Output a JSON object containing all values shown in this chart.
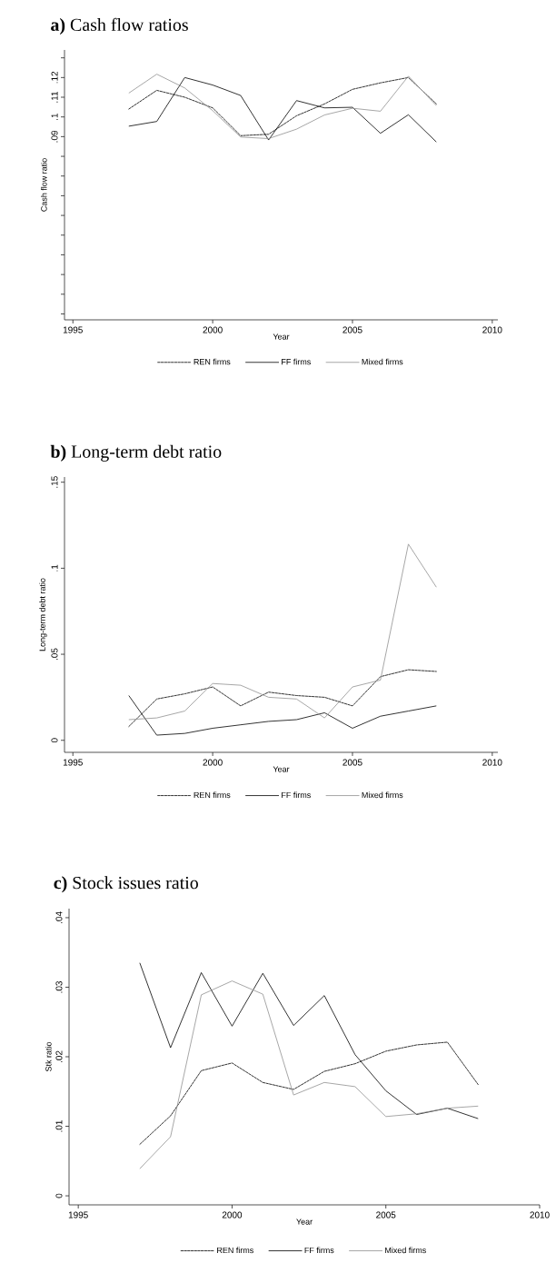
{
  "chart_data": [
    {
      "type": "line",
      "title": "**a)** Cash flow ratios",
      "xlabel": "Year",
      "ylabel": "Cash flow ratio",
      "legend": "bottom",
      "x": [
        1997,
        1998,
        1999,
        2000,
        2001,
        2002,
        2003,
        2004,
        2005,
        2006,
        2007,
        2008
      ],
      "series": [
        {
          "name": "REN firms",
          "color": "#000000",
          "line_style": "dashed",
          "values": [
            0.104,
            0.1135,
            0.11,
            0.1046,
            0.0905,
            0.0912,
            0.1006,
            0.1066,
            0.114,
            0.1173,
            0.12,
            0.1066
          ]
        },
        {
          "name": "FF firms",
          "color": "#000000",
          "line_style": "solid",
          "values": [
            0.0953,
            0.0977,
            0.12,
            0.1162,
            0.1109,
            0.0883,
            0.1083,
            0.1046,
            0.1049,
            0.0917,
            0.1011,
            0.0873
          ]
        },
        {
          "name": "Mixed firms",
          "color": "#909090",
          "line_style": "solid",
          "values": [
            0.1121,
            0.1217,
            0.1147,
            0.1032,
            0.0898,
            0.089,
            0.0938,
            0.101,
            0.1044,
            0.1029,
            0.1207,
            0.1058
          ]
        }
      ],
      "xlim": [
        1994.7,
        2010.2
      ],
      "ylim": [
        -0.003,
        0.134
      ],
      "xticks": [
        1995,
        2000,
        2005,
        2010
      ],
      "yticks": [
        {
          "value": 0,
          "label": null
        },
        {
          "value": 0.01,
          "label": null
        },
        {
          "value": 0.02,
          "label": null
        },
        {
          "value": 0.03,
          "label": null
        },
        {
          "value": 0.04,
          "label": null
        },
        {
          "value": 0.05,
          "label": null
        },
        {
          "value": 0.06,
          "label": null
        },
        {
          "value": 0.07,
          "label": null
        },
        {
          "value": 0.08,
          "label": null
        },
        {
          "value": 0.09,
          "label": ".09"
        },
        {
          "value": 0.1,
          "label": ".1"
        },
        {
          "value": 0.11,
          "label": ".11"
        },
        {
          "value": 0.12,
          "label": ".12"
        },
        {
          "value": 0.13,
          "label": null
        }
      ]
    },
    {
      "type": "line",
      "title": "**b)** Long-term debt ratio",
      "xlabel": "Year",
      "ylabel": "Long-term debt ratio",
      "legend": "bottom",
      "x": [
        1997,
        1998,
        1999,
        2000,
        2001,
        2002,
        2003,
        2004,
        2005,
        2006,
        2007,
        2008
      ],
      "series": [
        {
          "name": "REN firms",
          "color": "#000000",
          "line_style": "dashed",
          "values": [
            0.008,
            0.024,
            0.027,
            0.031,
            0.02,
            0.028,
            0.026,
            0.025,
            0.02,
            0.037,
            0.041,
            0.04
          ]
        },
        {
          "name": "FF firms",
          "color": "#000000",
          "line_style": "solid",
          "values": [
            0.026,
            0.003,
            0.004,
            0.007,
            0.009,
            0.011,
            0.012,
            0.016,
            0.007,
            0.014,
            0.017,
            0.02
          ]
        },
        {
          "name": "Mixed firms",
          "color": "#909090",
          "line_style": "solid",
          "values": [
            0.012,
            0.013,
            0.017,
            0.033,
            0.032,
            0.025,
            0.024,
            0.013,
            0.031,
            0.035,
            0.114,
            0.089
          ]
        }
      ],
      "xlim": [
        1994.7,
        2010.2
      ],
      "ylim": [
        -0.007,
        0.153
      ],
      "xticks": [
        1995,
        2000,
        2005,
        2010
      ],
      "yticks": [
        {
          "value": 0,
          "label": "0"
        },
        {
          "value": 0.05,
          "label": ".05"
        },
        {
          "value": 0.1,
          "label": ".1"
        },
        {
          "value": 0.15,
          "label": ".15"
        }
      ]
    },
    {
      "type": "line",
      "title": "**c)** Stock issues ratio",
      "xlabel": "Year",
      "ylabel": "Stk ratio",
      "legend": "bottom",
      "x": [
        1997,
        1998,
        1999,
        2000,
        2001,
        2002,
        2003,
        2004,
        2005,
        2006,
        2007,
        2008
      ],
      "series": [
        {
          "name": "REN firms",
          "color": "#000000",
          "line_style": "dashed",
          "values": [
            0.0074,
            0.0115,
            0.018,
            0.0191,
            0.0163,
            0.0153,
            0.0179,
            0.019,
            0.0208,
            0.0217,
            0.0221,
            0.016
          ]
        },
        {
          "name": "FF firms",
          "color": "#000000",
          "line_style": "solid",
          "values": [
            0.0335,
            0.0213,
            0.0321,
            0.0244,
            0.032,
            0.0245,
            0.0288,
            0.0203,
            0.0151,
            0.0117,
            0.0126,
            0.0111
          ]
        },
        {
          "name": "Mixed firms",
          "color": "#909090",
          "line_style": "solid",
          "values": [
            0.0039,
            0.0085,
            0.0289,
            0.0309,
            0.029,
            0.0145,
            0.0163,
            0.0157,
            0.0114,
            0.0118,
            0.0126,
            0.0129
          ]
        }
      ],
      "xlim": [
        1994.7,
        2010.0
      ],
      "ylim": [
        -0.0013,
        0.0413
      ],
      "xticks": [
        1995,
        2000,
        2005,
        2010
      ],
      "yticks": [
        {
          "value": 0,
          "label": "0"
        },
        {
          "value": 0.01,
          "label": ".01"
        },
        {
          "value": 0.02,
          "label": ".02"
        },
        {
          "value": 0.03,
          "label": ".03"
        },
        {
          "value": 0.04,
          "label": ".04"
        }
      ]
    }
  ]
}
